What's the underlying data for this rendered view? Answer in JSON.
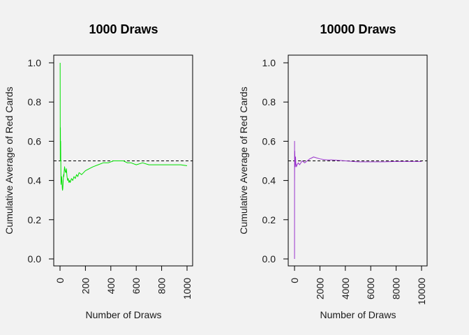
{
  "chart_data": [
    {
      "type": "line",
      "title": "1000 Draws",
      "xlabel": "Number of Draws",
      "ylabel": "Cumulative Average of Red Cards",
      "xlim": [
        0,
        1000
      ],
      "ylim": [
        0,
        1
      ],
      "xticks": [
        0,
        200,
        400,
        600,
        800,
        1000
      ],
      "xtick_labels": [
        "0",
        "200",
        "400",
        "600",
        "800",
        "1000"
      ],
      "yticks": [
        0,
        0.2,
        0.4,
        0.6,
        0.8,
        1.0
      ],
      "ytick_labels": [
        "0.0",
        "0.2",
        "0.4",
        "0.6",
        "0.8",
        "1.0"
      ],
      "reference_line": {
        "y": 0.5,
        "style": "dashed",
        "color": "#000000"
      },
      "grid": false,
      "series": [
        {
          "color": "#00e000",
          "x": [
            1,
            2,
            3,
            4,
            5,
            6,
            8,
            10,
            12,
            15,
            18,
            20,
            22,
            25,
            28,
            30,
            33,
            36,
            40,
            45,
            50,
            55,
            60,
            65,
            70,
            75,
            80,
            90,
            100,
            110,
            120,
            130,
            140,
            150,
            170,
            200,
            230,
            260,
            300,
            340,
            380,
            420,
            460,
            500,
            530,
            560,
            600,
            650,
            700,
            750,
            800,
            850,
            900,
            950,
            1000
          ],
          "y": [
            1.0,
            0.5,
            0.67,
            0.5,
            0.6,
            0.5,
            0.38,
            0.4,
            0.42,
            0.4,
            0.36,
            0.35,
            0.36,
            0.4,
            0.43,
            0.42,
            0.45,
            0.47,
            0.45,
            0.44,
            0.46,
            0.42,
            0.4,
            0.41,
            0.39,
            0.4,
            0.39,
            0.41,
            0.4,
            0.42,
            0.41,
            0.43,
            0.42,
            0.44,
            0.43,
            0.45,
            0.46,
            0.47,
            0.48,
            0.49,
            0.49,
            0.5,
            0.5,
            0.5,
            0.49,
            0.49,
            0.48,
            0.49,
            0.48,
            0.48,
            0.48,
            0.48,
            0.48,
            0.48,
            0.475
          ]
        }
      ]
    },
    {
      "type": "line",
      "title": "10000 Draws",
      "xlabel": "Number of Draws",
      "ylabel": "Cumulative Average of Red Cards",
      "xlim": [
        0,
        10000
      ],
      "ylim": [
        0,
        1
      ],
      "xticks": [
        0,
        2000,
        4000,
        6000,
        8000,
        10000
      ],
      "xtick_labels": [
        "0",
        "2000",
        "4000",
        "6000",
        "8000",
        "10000"
      ],
      "yticks": [
        0,
        0.2,
        0.4,
        0.6,
        0.8,
        1.0
      ],
      "ytick_labels": [
        "0.0",
        "0.2",
        "0.4",
        "0.6",
        "0.8",
        "1.0"
      ],
      "reference_line": {
        "y": 0.5,
        "style": "dashed",
        "color": "#000000"
      },
      "grid": false,
      "series": [
        {
          "color": "#9933cc",
          "x": [
            1,
            3,
            5,
            10,
            20,
            40,
            60,
            80,
            100,
            150,
            200,
            300,
            400,
            500,
            600,
            800,
            1000,
            1200,
            1500,
            2000,
            2500,
            3000,
            4000,
            5000,
            6000,
            7000,
            8000,
            9000,
            10000
          ],
          "y": [
            0.0,
            0.6,
            0.4,
            0.5,
            0.55,
            0.5,
            0.47,
            0.52,
            0.49,
            0.47,
            0.48,
            0.49,
            0.48,
            0.49,
            0.5,
            0.49,
            0.5,
            0.51,
            0.52,
            0.51,
            0.505,
            0.505,
            0.5,
            0.495,
            0.495,
            0.495,
            0.497,
            0.497,
            0.497
          ]
        }
      ]
    }
  ]
}
